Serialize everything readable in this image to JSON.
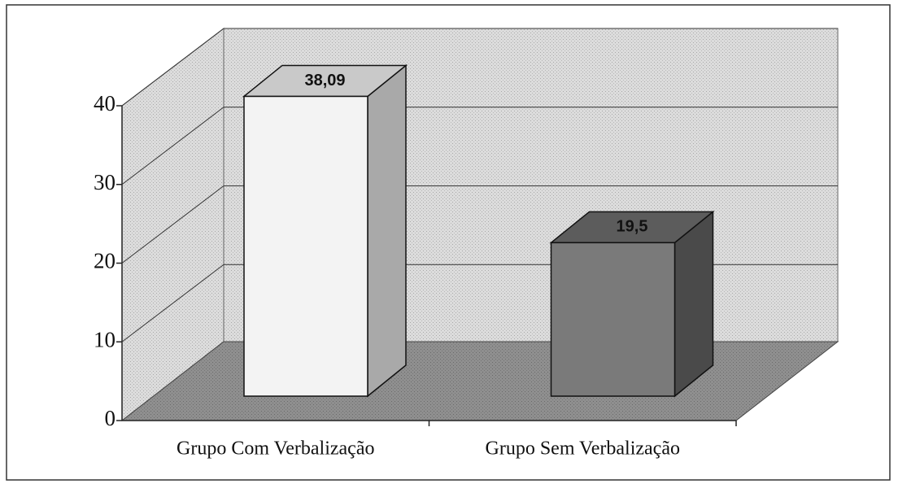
{
  "chart_data": {
    "type": "bar3d",
    "categories": [
      "Grupo Com Verbalização",
      "Grupo Sem Verbalização"
    ],
    "values": [
      38.09,
      19.5
    ],
    "value_labels": [
      "38,09",
      "19,5"
    ],
    "colors": [
      "#f3f3f3",
      "#7a7a7a"
    ],
    "ylim": [
      0,
      40
    ],
    "yticks": [
      0,
      10,
      20,
      30,
      40
    ],
    "grid": true
  }
}
